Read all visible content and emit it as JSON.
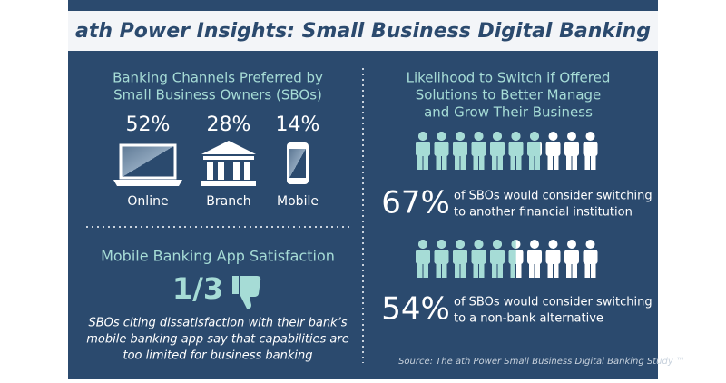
{
  "header": {
    "title": "ath Power Insights: Small Business Digital Banking"
  },
  "channels": {
    "heading": [
      "Banking Channels Preferred by",
      "Small Business Owners (SBOs)"
    ],
    "items": [
      {
        "value": "52%",
        "label": "Online"
      },
      {
        "value": "28%",
        "label": "Branch"
      },
      {
        "value": "14%",
        "label": "Mobile"
      }
    ]
  },
  "satisfaction": {
    "heading": "Mobile Banking App Satisfaction",
    "stat": "1/3",
    "text": [
      "SBOs citing dissatisfaction with their bank’s",
      "mobile banking app say that capabilities are",
      "too limited for business banking"
    ]
  },
  "switch": {
    "heading": [
      "Likelihood to Switch if Offered",
      "Solutions to Better Manage",
      "and Grow Their Business"
    ],
    "items": [
      {
        "percent": 67,
        "percent_label": "67%",
        "text": [
          "of SBOs would consider switching",
          "to another financial institution"
        ]
      },
      {
        "percent": 54,
        "percent_label": "54%",
        "text": [
          "of SBOs would consider switching",
          "to a non-bank alternative"
        ]
      }
    ]
  },
  "source": "Source: The ath Power Small Business Digital Banking Study ™"
}
